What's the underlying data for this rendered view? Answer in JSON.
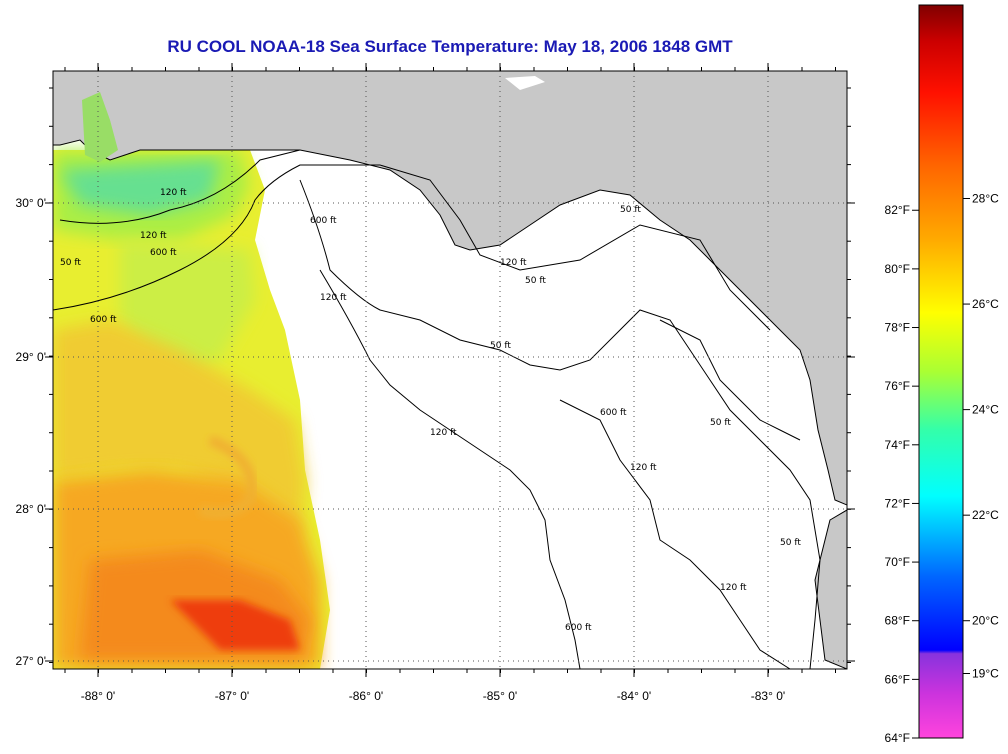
{
  "title": "RU COOL  NOAA-18  Sea Surface Temperature:  May 18, 2006 1848 GMT",
  "map": {
    "lon_ticks": [
      "-88° 0'",
      "-87° 0'",
      "-86° 0'",
      "-85° 0'",
      "-84° 0'",
      "-83° 0'"
    ],
    "lat_ticks": [
      "30° 0'",
      "29° 0'",
      "28° 0'",
      "27° 0'"
    ],
    "contour_labels": [
      "120 ft",
      "600 ft",
      "50 ft",
      "120 ft",
      "600 ft",
      "120 ft",
      "50 ft",
      "120 ft",
      "600 ft",
      "120 ft",
      "50 ft",
      "50 ft",
      "600 ft",
      "120 ft",
      "50 ft",
      "120 ft",
      "50 ft",
      "600 ft"
    ],
    "land_color": "#c8c8c8",
    "grid": "dotted"
  },
  "colorbar": {
    "f_labels": [
      "82°F",
      "80°F",
      "78°F",
      "76°F",
      "74°F",
      "72°F",
      "70°F",
      "68°F",
      "66°F",
      "64°F"
    ],
    "c_labels": [
      "28°C",
      "26°C",
      "24°C",
      "22°C",
      "20°C",
      "19°C"
    ],
    "range_f": [
      64,
      89
    ],
    "colors": [
      "#ff44dd",
      "#9933dd",
      "#1133ff",
      "#0088ff",
      "#00ffff",
      "#33ffaa",
      "#aaff33",
      "#ffff00",
      "#ffaa00",
      "#ff6600",
      "#ff1100",
      "#cc0000",
      "#800000"
    ]
  }
}
